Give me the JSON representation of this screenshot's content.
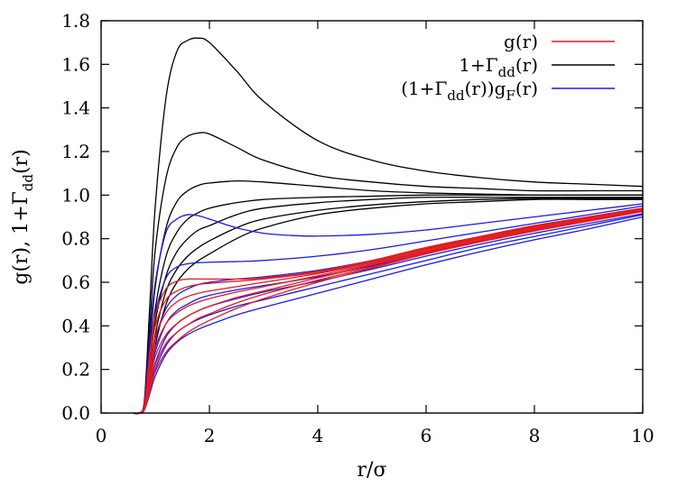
{
  "chart_data": {
    "type": "line",
    "xlabel": "r/σ",
    "ylabel": "g(r), 1+Γdd(r)",
    "xlim": [
      0,
      10
    ],
    "ylim": [
      0.0,
      1.8
    ],
    "xticks": [
      "0",
      "2",
      "4",
      "6",
      "8",
      "10"
    ],
    "yticks": [
      "0.0",
      "0.2",
      "0.4",
      "0.6",
      "0.8",
      "1.0",
      "1.2",
      "1.4",
      "1.6",
      "1.8"
    ],
    "grid": false,
    "legend_position": "top-right",
    "legend": [
      {
        "label": "g(r)",
        "color": "#e41a1c"
      },
      {
        "label": "1+Γdd(r)",
        "color": "#000000"
      },
      {
        "label": "(1+Γdd(r))gF(r)",
        "color": "#1a1ae6"
      }
    ],
    "colors": {
      "red": "#e41a1c",
      "black": "#000000",
      "blue": "#1a1ae6"
    },
    "series": [
      {
        "color": "black",
        "x": [
          0.6,
          0.7,
          0.8,
          0.9,
          1.0,
          1.2,
          1.4,
          1.6,
          1.8,
          2.0,
          2.5,
          3.0,
          4.0,
          5.0,
          6.0,
          7.0,
          8.0,
          9.0,
          10.0
        ],
        "y": [
          0,
          0,
          0.06,
          0.5,
          0.95,
          1.45,
          1.66,
          1.71,
          1.72,
          1.7,
          1.57,
          1.43,
          1.25,
          1.16,
          1.11,
          1.08,
          1.06,
          1.05,
          1.04
        ]
      },
      {
        "color": "black",
        "x": [
          0.6,
          0.7,
          0.8,
          0.9,
          1.0,
          1.2,
          1.4,
          1.6,
          1.8,
          2.0,
          2.5,
          3.0,
          4.0,
          5.0,
          6.0,
          7.0,
          8.0,
          9.0,
          10.0
        ],
        "y": [
          0,
          0,
          0.05,
          0.4,
          0.75,
          1.08,
          1.22,
          1.27,
          1.285,
          1.28,
          1.22,
          1.16,
          1.09,
          1.06,
          1.04,
          1.03,
          1.02,
          1.02,
          1.02
        ]
      },
      {
        "color": "black",
        "x": [
          0.6,
          0.7,
          0.8,
          0.9,
          1.0,
          1.2,
          1.4,
          1.6,
          1.8,
          2.0,
          2.5,
          3.0,
          4.0,
          5.0,
          6.0,
          7.0,
          8.0,
          9.0,
          10.0
        ],
        "y": [
          0,
          0,
          0.04,
          0.3,
          0.58,
          0.85,
          0.97,
          1.02,
          1.045,
          1.055,
          1.065,
          1.06,
          1.04,
          1.02,
          1.01,
          1.005,
          1.0,
          1.0,
          1.0
        ]
      },
      {
        "color": "black",
        "x": [
          0.6,
          0.7,
          0.8,
          0.9,
          1.0,
          1.2,
          1.4,
          1.6,
          1.8,
          2.0,
          2.5,
          3.0,
          4.0,
          5.0,
          6.0,
          7.0,
          8.0,
          9.0,
          10.0
        ],
        "y": [
          0,
          0,
          0.03,
          0.25,
          0.48,
          0.72,
          0.83,
          0.89,
          0.92,
          0.94,
          0.965,
          0.98,
          0.99,
          0.995,
          1.0,
          1.0,
          1.0,
          1.0,
          1.0
        ]
      },
      {
        "color": "black",
        "x": [
          0.6,
          0.7,
          0.8,
          0.9,
          1.0,
          1.2,
          1.4,
          1.6,
          1.8,
          2.0,
          2.5,
          3.0,
          4.0,
          5.0,
          6.0,
          7.0,
          8.0,
          9.0,
          10.0
        ],
        "y": [
          0,
          0,
          0.03,
          0.22,
          0.42,
          0.63,
          0.74,
          0.8,
          0.84,
          0.86,
          0.91,
          0.94,
          0.965,
          0.98,
          0.99,
          0.99,
          0.99,
          0.99,
          0.99
        ]
      },
      {
        "color": "black",
        "x": [
          0.6,
          0.7,
          0.8,
          0.9,
          1.0,
          1.2,
          1.4,
          1.6,
          1.8,
          2.0,
          2.5,
          3.0,
          4.0,
          5.0,
          6.0,
          7.0,
          8.0,
          9.0,
          10.0
        ],
        "y": [
          0,
          0,
          0.02,
          0.18,
          0.36,
          0.56,
          0.66,
          0.72,
          0.76,
          0.79,
          0.85,
          0.89,
          0.93,
          0.955,
          0.97,
          0.98,
          0.985,
          0.985,
          0.985
        ]
      },
      {
        "color": "black",
        "x": [
          0.6,
          0.7,
          0.8,
          0.9,
          1.0,
          1.2,
          1.4,
          1.6,
          1.8,
          2.0,
          2.5,
          3.0,
          4.0,
          5.0,
          6.0,
          7.0,
          8.0,
          9.0,
          10.0
        ],
        "y": [
          0,
          0,
          0.02,
          0.15,
          0.31,
          0.5,
          0.6,
          0.66,
          0.7,
          0.73,
          0.8,
          0.85,
          0.91,
          0.94,
          0.96,
          0.97,
          0.98,
          0.98,
          0.98
        ]
      },
      {
        "color": "red",
        "x": [
          0.6,
          0.7,
          0.8,
          0.9,
          1.0,
          1.2,
          1.4,
          1.6,
          1.8,
          2.0,
          2.5,
          3.0,
          4.0,
          5.0,
          6.0,
          7.0,
          8.0,
          9.0,
          10.0
        ],
        "y": [
          0,
          0,
          0.04,
          0.28,
          0.45,
          0.57,
          0.605,
          0.615,
          0.615,
          0.615,
          0.615,
          0.62,
          0.65,
          0.7,
          0.76,
          0.81,
          0.86,
          0.9,
          0.94
        ]
      },
      {
        "color": "red",
        "x": [
          0.6,
          0.7,
          0.8,
          0.9,
          1.0,
          1.2,
          1.4,
          1.6,
          1.8,
          2.0,
          2.5,
          3.0,
          4.0,
          5.0,
          6.0,
          7.0,
          8.0,
          9.0,
          10.0
        ],
        "y": [
          0,
          0,
          0.035,
          0.24,
          0.4,
          0.52,
          0.56,
          0.58,
          0.59,
          0.595,
          0.605,
          0.615,
          0.645,
          0.695,
          0.755,
          0.81,
          0.86,
          0.9,
          0.94
        ]
      },
      {
        "color": "red",
        "x": [
          0.6,
          0.7,
          0.8,
          0.9,
          1.0,
          1.2,
          1.4,
          1.6,
          1.8,
          2.0,
          2.5,
          3.0,
          4.0,
          5.0,
          6.0,
          7.0,
          8.0,
          9.0,
          10.0
        ],
        "y": [
          0,
          0,
          0.03,
          0.2,
          0.35,
          0.46,
          0.51,
          0.535,
          0.55,
          0.56,
          0.58,
          0.6,
          0.64,
          0.69,
          0.75,
          0.805,
          0.855,
          0.9,
          0.935
        ]
      },
      {
        "color": "red",
        "x": [
          0.6,
          0.7,
          0.8,
          0.9,
          1.0,
          1.2,
          1.4,
          1.6,
          1.8,
          2.0,
          2.5,
          3.0,
          4.0,
          5.0,
          6.0,
          7.0,
          8.0,
          9.0,
          10.0
        ],
        "y": [
          0,
          0,
          0.025,
          0.17,
          0.3,
          0.41,
          0.46,
          0.49,
          0.51,
          0.525,
          0.555,
          0.58,
          0.63,
          0.685,
          0.745,
          0.8,
          0.85,
          0.895,
          0.935
        ]
      },
      {
        "color": "red",
        "x": [
          0.6,
          0.7,
          0.8,
          0.9,
          1.0,
          1.2,
          1.4,
          1.6,
          1.8,
          2.0,
          2.5,
          3.0,
          4.0,
          5.0,
          6.0,
          7.0,
          8.0,
          9.0,
          10.0
        ],
        "y": [
          0,
          0,
          0.02,
          0.14,
          0.26,
          0.36,
          0.41,
          0.445,
          0.47,
          0.49,
          0.53,
          0.56,
          0.62,
          0.68,
          0.74,
          0.795,
          0.845,
          0.89,
          0.93
        ]
      },
      {
        "color": "red",
        "x": [
          0.6,
          0.7,
          0.8,
          0.9,
          1.0,
          1.2,
          1.4,
          1.6,
          1.8,
          2.0,
          2.5,
          3.0,
          4.0,
          5.0,
          6.0,
          7.0,
          8.0,
          9.0,
          10.0
        ],
        "y": [
          0,
          0,
          0.018,
          0.12,
          0.22,
          0.32,
          0.37,
          0.405,
          0.435,
          0.455,
          0.505,
          0.545,
          0.61,
          0.67,
          0.735,
          0.79,
          0.84,
          0.885,
          0.93
        ]
      },
      {
        "color": "red",
        "x": [
          0.6,
          0.7,
          0.8,
          0.9,
          1.0,
          1.2,
          1.4,
          1.6,
          1.8,
          2.0,
          2.5,
          3.0,
          4.0,
          5.0,
          6.0,
          7.0,
          8.0,
          9.0,
          10.0
        ],
        "y": [
          0,
          0,
          0.015,
          0.1,
          0.19,
          0.28,
          0.33,
          0.37,
          0.4,
          0.425,
          0.48,
          0.525,
          0.6,
          0.665,
          0.73,
          0.785,
          0.835,
          0.88,
          0.925
        ]
      },
      {
        "color": "blue",
        "x": [
          0.6,
          0.7,
          0.8,
          0.9,
          1.0,
          1.2,
          1.4,
          1.6,
          1.8,
          2.0,
          2.5,
          3.0,
          3.5,
          4.0,
          5.0,
          6.0,
          7.0,
          8.0,
          9.0,
          10.0
        ],
        "y": [
          0,
          0,
          0.05,
          0.35,
          0.6,
          0.83,
          0.89,
          0.91,
          0.905,
          0.89,
          0.85,
          0.825,
          0.815,
          0.812,
          0.82,
          0.84,
          0.87,
          0.9,
          0.93,
          0.96
        ]
      },
      {
        "color": "blue",
        "x": [
          0.6,
          0.7,
          0.8,
          0.9,
          1.0,
          1.2,
          1.4,
          1.6,
          1.8,
          2.0,
          2.5,
          3.0,
          4.0,
          5.0,
          6.0,
          7.0,
          8.0,
          9.0,
          10.0
        ],
        "y": [
          0,
          0,
          0.04,
          0.28,
          0.46,
          0.62,
          0.67,
          0.685,
          0.69,
          0.692,
          0.695,
          0.7,
          0.72,
          0.75,
          0.79,
          0.83,
          0.87,
          0.91,
          0.95
        ]
      },
      {
        "color": "blue",
        "x": [
          0.6,
          0.7,
          0.8,
          0.9,
          1.0,
          1.2,
          1.4,
          1.6,
          1.8,
          2.0,
          2.5,
          3.0,
          4.0,
          5.0,
          6.0,
          7.0,
          8.0,
          9.0,
          10.0
        ],
        "y": [
          0,
          0,
          0.03,
          0.2,
          0.34,
          0.48,
          0.54,
          0.57,
          0.59,
          0.6,
          0.615,
          0.625,
          0.655,
          0.7,
          0.755,
          0.805,
          0.855,
          0.9,
          0.94
        ]
      },
      {
        "color": "blue",
        "x": [
          0.6,
          0.7,
          0.8,
          0.9,
          1.0,
          1.2,
          1.4,
          1.6,
          1.8,
          2.0,
          2.5,
          3.0,
          4.0,
          5.0,
          6.0,
          7.0,
          8.0,
          9.0,
          10.0
        ],
        "y": [
          0,
          0,
          0.025,
          0.16,
          0.28,
          0.41,
          0.47,
          0.5,
          0.525,
          0.54,
          0.565,
          0.585,
          0.625,
          0.675,
          0.735,
          0.79,
          0.84,
          0.885,
          0.925
        ]
      },
      {
        "color": "blue",
        "x": [
          0.6,
          0.7,
          0.8,
          0.9,
          1.0,
          1.2,
          1.4,
          1.6,
          1.8,
          2.0,
          2.5,
          3.0,
          4.0,
          5.0,
          6.0,
          7.0,
          8.0,
          9.0,
          10.0
        ],
        "y": [
          0,
          0,
          0.02,
          0.13,
          0.23,
          0.35,
          0.41,
          0.445,
          0.47,
          0.49,
          0.525,
          0.555,
          0.605,
          0.66,
          0.72,
          0.775,
          0.825,
          0.87,
          0.915
        ]
      },
      {
        "color": "blue",
        "x": [
          0.6,
          0.7,
          0.8,
          0.9,
          1.0,
          1.2,
          1.4,
          1.6,
          1.8,
          2.0,
          2.5,
          3.0,
          4.0,
          5.0,
          6.0,
          7.0,
          8.0,
          9.0,
          10.0
        ],
        "y": [
          0,
          0,
          0.018,
          0.11,
          0.2,
          0.31,
          0.37,
          0.405,
          0.43,
          0.45,
          0.49,
          0.52,
          0.58,
          0.64,
          0.7,
          0.76,
          0.81,
          0.86,
          0.91
        ]
      },
      {
        "color": "blue",
        "x": [
          0.6,
          0.7,
          0.8,
          0.9,
          1.0,
          1.2,
          1.4,
          1.6,
          1.8,
          2.0,
          2.5,
          3.0,
          4.0,
          5.0,
          6.0,
          7.0,
          8.0,
          9.0,
          10.0
        ],
        "y": [
          0,
          0,
          0.015,
          0.09,
          0.17,
          0.27,
          0.325,
          0.36,
          0.385,
          0.405,
          0.45,
          0.485,
          0.55,
          0.615,
          0.68,
          0.74,
          0.795,
          0.845,
          0.9
        ]
      }
    ]
  }
}
